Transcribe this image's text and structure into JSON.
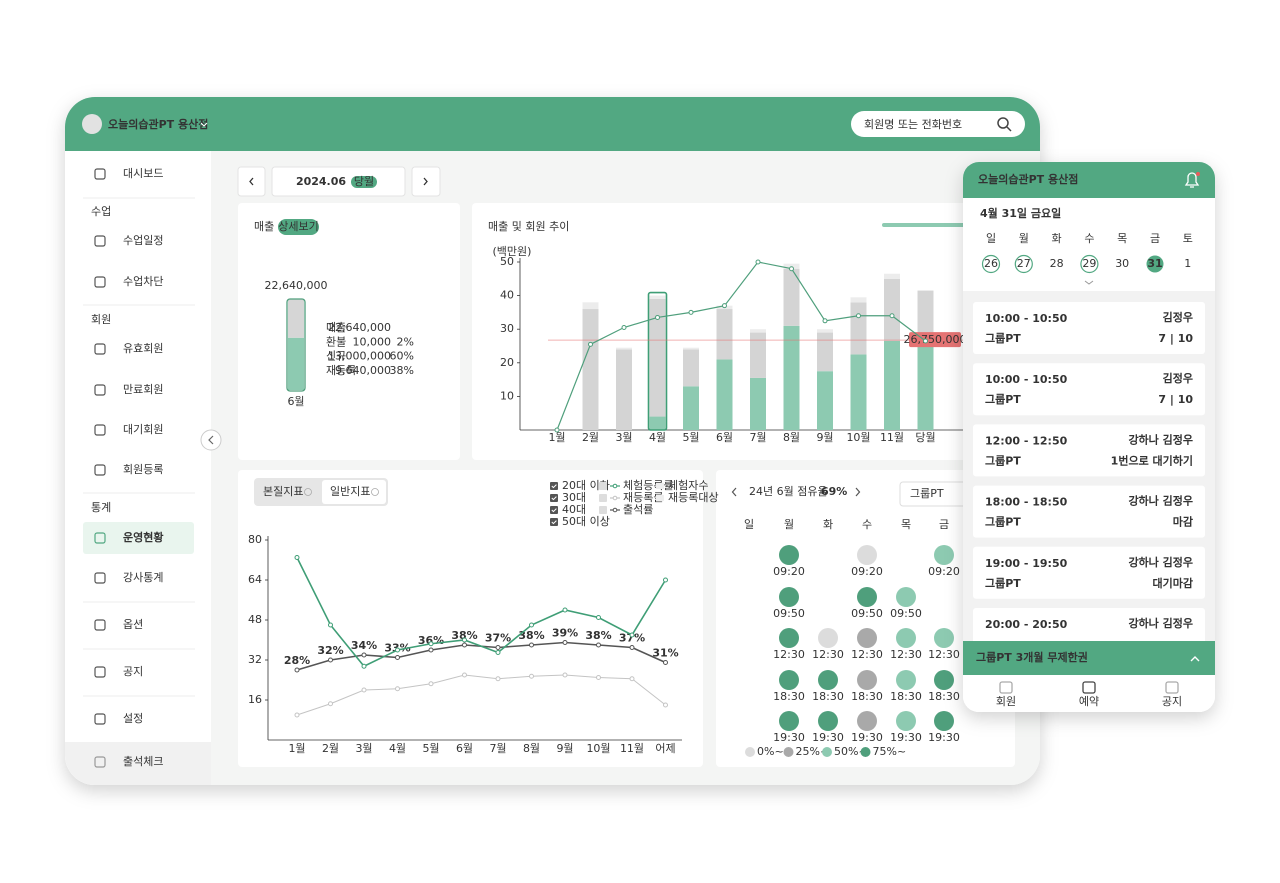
{
  "header": {
    "brand": "오늘의습관PT 용산점",
    "search_placeholder": "회원명 또는 전화번호"
  },
  "sidebar": {
    "groups": [
      {
        "items": [
          {
            "label": "대시보드"
          }
        ]
      },
      {
        "section": "수업",
        "items": [
          {
            "label": "수업일정"
          },
          {
            "label": "수업차단"
          }
        ]
      },
      {
        "section": "회원",
        "items": [
          {
            "label": "유효회원"
          },
          {
            "label": "만료회원"
          },
          {
            "label": "대기회원"
          },
          {
            "label": "회원등록"
          }
        ]
      },
      {
        "section": "통계",
        "items": [
          {
            "label": "운영현황",
            "active": true
          },
          {
            "label": "강사통계"
          }
        ]
      },
      {
        "items": [
          {
            "label": "옵션"
          }
        ]
      },
      {
        "items": [
          {
            "label": "공지"
          }
        ]
      },
      {
        "items": [
          {
            "label": "설정"
          }
        ]
      },
      {
        "items": [
          {
            "label": "출석체크"
          }
        ]
      }
    ]
  },
  "date_nav": {
    "month": "2024.06",
    "badge": "당월"
  },
  "revenue": {
    "title": "매출",
    "button": "상세보기",
    "bar": {
      "label": "22,640,000",
      "category": "6월",
      "segments": [
        {
          "value": 13000000,
          "color": "#8dcab1"
        },
        {
          "value": 9640000,
          "color": "#d6d6d6"
        }
      ]
    },
    "rows": [
      {
        "label": "매출",
        "amount": "22,640,000"
      },
      {
        "label": "환불",
        "amount": "10,000",
        "share": "2%"
      },
      {
        "label": "신규",
        "amount": "13,000,000",
        "share": "60%"
      },
      {
        "label": "재등록",
        "amount": "9,640,000",
        "share": "38%"
      }
    ]
  },
  "trend": {
    "title": "매출 및 회원 추이",
    "y_label": "(백만원)",
    "ylim": [
      0,
      50
    ],
    "yticks": [
      10,
      20,
      30,
      40,
      50
    ],
    "categories": [
      "1월",
      "2월",
      "3월",
      "4월",
      "5월",
      "6월",
      "7월",
      "8월",
      "9월",
      "10월",
      "11월",
      "당월"
    ],
    "series": [
      {
        "color": "#8dcab1",
        "values": [
          0,
          0,
          0,
          4,
          13,
          21,
          15.5,
          31,
          17.5,
          22.5,
          26.5,
          27
        ]
      },
      {
        "color": "#d4d4d4",
        "values": [
          0,
          36,
          24,
          35,
          11,
          15,
          13.5,
          17,
          11.5,
          15.5,
          18.5,
          14.5
        ]
      },
      {
        "color": "#ececec",
        "values": [
          0,
          2,
          0.5,
          1,
          0.5,
          1,
          1,
          1.5,
          1,
          1.5,
          1.5,
          0
        ]
      }
    ],
    "line": {
      "color": "#4f9f7c",
      "values": [
        0,
        25.5,
        30.5,
        33.5,
        35,
        37,
        50,
        48,
        32.5,
        34,
        34,
        26.5
      ]
    },
    "reference": {
      "value": 26.75,
      "label": "26,750,000",
      "color": "#e57373"
    },
    "highlight": 3
  },
  "metrics": {
    "tabs": [
      {
        "label": "본질지표"
      },
      {
        "label": "일반지표"
      }
    ],
    "age_filters": [
      "20대 이하",
      "30대",
      "40대",
      "50대 이상"
    ],
    "other_legend": [
      "체험자수",
      "재등록대상"
    ],
    "chart": {
      "type": "line",
      "ylim": [
        0,
        80
      ],
      "yticks": [
        16,
        32,
        48,
        64,
        80
      ],
      "categories": [
        "1월",
        "2월",
        "3월",
        "4월",
        "5월",
        "6월",
        "7월",
        "8월",
        "9월",
        "10월",
        "11월",
        "어제"
      ],
      "series": [
        {
          "name": "체험등록률",
          "color": "#3f9e76",
          "values": [
            73,
            46,
            29.5,
            36,
            38.5,
            40,
            35,
            46,
            52,
            49,
            42,
            64
          ]
        },
        {
          "name": "재등록률",
          "color": "#c4c4c4",
          "values": [
            10,
            14.5,
            20,
            20.5,
            22.5,
            26,
            24.5,
            25.5,
            26,
            25,
            24.5,
            14
          ]
        },
        {
          "name": "출석률",
          "color": "#555555",
          "values": [
            28,
            32,
            34,
            33,
            36,
            38,
            37,
            38,
            39,
            38,
            37,
            31
          ],
          "value_labels": [
            "28%",
            "32%",
            "34%",
            "33%",
            "36%",
            "38%",
            "37%",
            "38%",
            "39%",
            "38%",
            "37%",
            "31%"
          ]
        }
      ]
    }
  },
  "occupancy": {
    "title": "24년 6월 점유율",
    "rate": "69%",
    "filter": "그룹PT",
    "weekdays": [
      "일",
      "월",
      "화",
      "수",
      "목",
      "금"
    ],
    "levels": [
      {
        "label": "0%~",
        "color": "#dcdcdc"
      },
      {
        "label": "25%~",
        "color": "#a9a9a9"
      },
      {
        "label": "50%~",
        "color": "#8dcab1"
      },
      {
        "label": "75%~",
        "color": "#4f9f7c"
      }
    ],
    "slots": [
      {
        "day": 1,
        "row": 0,
        "time": "09:20",
        "level": 3
      },
      {
        "day": 3,
        "row": 0,
        "time": "09:20",
        "level": 0
      },
      {
        "day": 5,
        "row": 0,
        "time": "09:20",
        "level": 2
      },
      {
        "day": 1,
        "row": 1,
        "time": "09:50",
        "level": 3
      },
      {
        "day": 3,
        "row": 1,
        "time": "09:50",
        "level": 3
      },
      {
        "day": 4,
        "row": 1,
        "time": "09:50",
        "level": 2
      },
      {
        "day": 1,
        "row": 2,
        "time": "12:30",
        "level": 3
      },
      {
        "day": 2,
        "row": 2,
        "time": "12:30",
        "level": 0
      },
      {
        "day": 3,
        "row": 2,
        "time": "12:30",
        "level": 1
      },
      {
        "day": 4,
        "row": 2,
        "time": "12:30",
        "level": 2
      },
      {
        "day": 5,
        "row": 2,
        "time": "12:30",
        "level": 2
      },
      {
        "day": 1,
        "row": 3,
        "time": "18:30",
        "level": 3
      },
      {
        "day": 2,
        "row": 3,
        "time": "18:30",
        "level": 3
      },
      {
        "day": 3,
        "row": 3,
        "time": "18:30",
        "level": 1
      },
      {
        "day": 4,
        "row": 3,
        "time": "18:30",
        "level": 2
      },
      {
        "day": 5,
        "row": 3,
        "time": "18:30",
        "level": 3
      },
      {
        "day": 1,
        "row": 4,
        "time": "19:30",
        "level": 3
      },
      {
        "day": 2,
        "row": 4,
        "time": "19:30",
        "level": 3
      },
      {
        "day": 3,
        "row": 4,
        "time": "19:30",
        "level": 1
      },
      {
        "day": 4,
        "row": 4,
        "time": "19:30",
        "level": 2
      },
      {
        "day": 5,
        "row": 4,
        "time": "19:30",
        "level": 3
      }
    ]
  },
  "mobile": {
    "brand": "오늘의습관PT 용산점",
    "date": "4월 31일 금요일",
    "weekdays": [
      "일",
      "월",
      "화",
      "수",
      "목",
      "금",
      "토"
    ],
    "dates": [
      {
        "label": "26",
        "booked": true
      },
      {
        "label": "27",
        "booked": true
      },
      {
        "label": "28"
      },
      {
        "label": "29",
        "booked": true
      },
      {
        "label": "30"
      },
      {
        "label": "31",
        "selected": true
      },
      {
        "label": "1"
      }
    ],
    "classes": [
      {
        "time": "10:00 - 10:50",
        "teacher": "김정우",
        "type": "그룹PT",
        "status": "7 | 10",
        "tone": "normal"
      },
      {
        "time": "10:00 - 10:50",
        "teacher": "김정우",
        "type": "그룹PT",
        "status": "7 | 10",
        "tone": "normal"
      },
      {
        "time": "12:00 - 12:50",
        "teacher": "강하나 김정우",
        "type": "그룹PT",
        "status": "1번으로 대기하기",
        "tone": "wait"
      },
      {
        "time": "18:00 - 18:50",
        "teacher": "강하나 김정우",
        "type": "그룹PT",
        "status": "마감",
        "tone": "closed"
      },
      {
        "time": "19:00 - 19:50",
        "teacher": "강하나 김정우",
        "type": "그룹PT",
        "status": "대기마감",
        "tone": "closed"
      },
      {
        "time": "20:00 - 20:50",
        "teacher": "강하나 김정우"
      }
    ],
    "plan": "그룹PT 3개월 무제한권",
    "tabs": [
      {
        "label": "회원"
      },
      {
        "label": "예약",
        "active": true
      },
      {
        "label": "공지"
      }
    ]
  }
}
